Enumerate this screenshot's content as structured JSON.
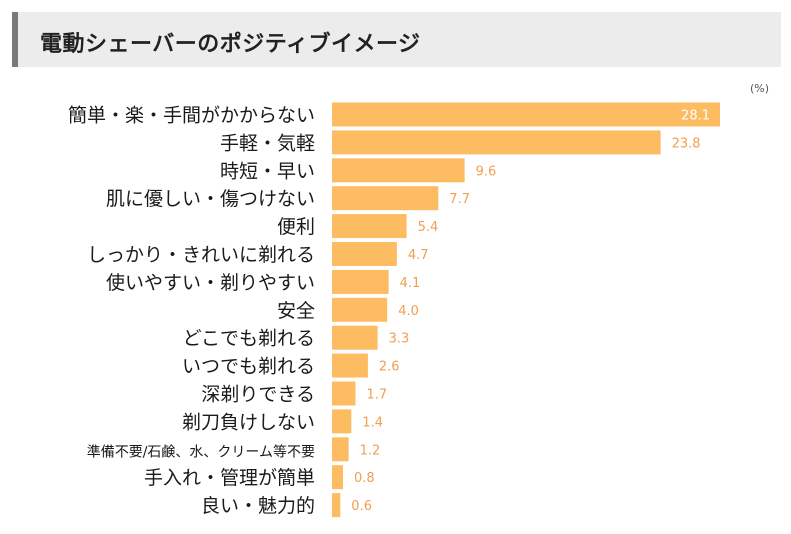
{
  "header": {
    "title": "電動シェーバーのポジティブイメージ"
  },
  "chart_data": {
    "type": "bar",
    "orientation": "horizontal",
    "title": "電動シェーバーのポジティブイメージ",
    "unit": "(%)",
    "categories": [
      "簡単・楽・手間がかからない",
      "手軽・気軽",
      "時短・早い",
      "肌に優しい・傷つけない",
      "便利",
      "しっかり・きれいに剃れる",
      "使いやすい・剃りやすい",
      "安全",
      "どこでも剃れる",
      "いつでも剃れる",
      "深剃りできる",
      "剃刀負けしない",
      "準備不要/石鹸、水、クリーム等不要",
      "手入れ・管理が簡単",
      "良い・魅力的"
    ],
    "values": [
      28.1,
      23.8,
      9.6,
      7.7,
      5.4,
      4.7,
      4.1,
      4.0,
      3.3,
      2.6,
      1.7,
      1.4,
      1.2,
      0.8,
      0.6
    ],
    "value_labels": [
      "28.1",
      "23.8",
      "9.6",
      "7.7",
      "5.4",
      "4.7",
      "4.1",
      "4.0",
      "3.3",
      "2.6",
      "1.7",
      "1.4",
      "1.2",
      "0.8",
      "0.6"
    ],
    "xlim": [
      0,
      28.1
    ],
    "bar_color": "#fdbb62",
    "label_color_inside": "#ffffff",
    "label_color_outside": "#f0a050",
    "grid": false,
    "legend": "none"
  }
}
